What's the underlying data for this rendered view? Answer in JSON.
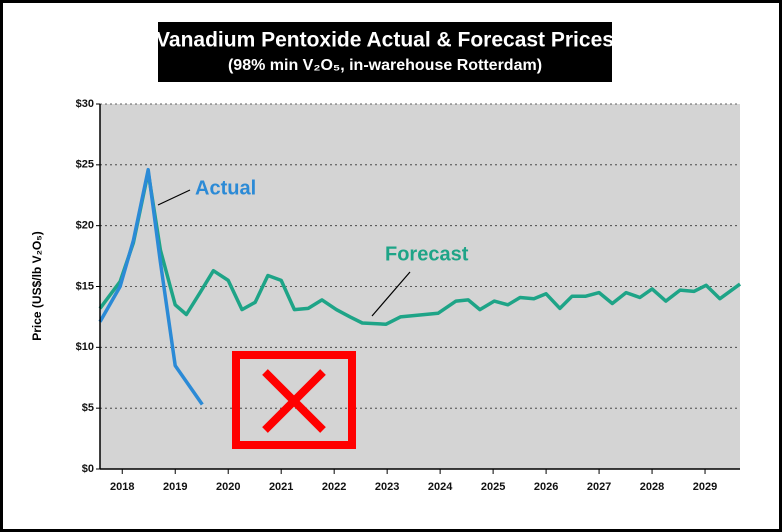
{
  "chart_data": {
    "type": "line",
    "title": "Vanadium Pentoxide Actual & Forecast Prices",
    "subtitle": "(98% min V₂O₅, in-warehouse Rotterdam)",
    "y_label": "Price (US$/lb V₂O₅)",
    "xlim": [
      2017.58,
      2029.66
    ],
    "xticks": [
      2018,
      2019,
      2020,
      2021,
      2022,
      2023,
      2024,
      2025,
      2026,
      2027,
      2028,
      2029
    ],
    "ylim": [
      0,
      30
    ],
    "yticks": [
      {
        "value": 0,
        "label": "$0"
      },
      {
        "value": 5,
        "label": "$5"
      },
      {
        "value": 10,
        "label": "$10"
      },
      {
        "value": 15,
        "label": "$15"
      },
      {
        "value": 20,
        "label": "$20"
      },
      {
        "value": 25,
        "label": "$25"
      },
      {
        "value": 30,
        "label": "$30"
      }
    ],
    "grid": true,
    "series": [
      {
        "name": "Actual",
        "color": "#2b8ad6",
        "x": [
          2017.58,
          2017.96,
          2018.21,
          2018.49,
          2018.72,
          2019.0,
          2019.51
        ],
        "values": [
          12.1,
          15.0,
          18.8,
          24.6,
          17.0,
          8.5,
          5.3
        ]
      },
      {
        "name": "Forecast",
        "color": "#1ea487",
        "x": [
          2017.58,
          2017.96,
          2018.21,
          2018.49,
          2018.72,
          2019.0,
          2019.21,
          2019.47,
          2019.72,
          2020.0,
          2020.26,
          2020.51,
          2020.75,
          2021.0,
          2021.25,
          2021.51,
          2021.77,
          2022.04,
          2022.3,
          2022.53,
          2022.98,
          2023.25,
          2023.96,
          2024.3,
          2024.53,
          2024.75,
          2025.02,
          2025.28,
          2025.51,
          2025.77,
          2026.0,
          2026.26,
          2026.49,
          2026.75,
          2027.0,
          2027.25,
          2027.51,
          2027.77,
          2028.0,
          2028.26,
          2028.53,
          2028.79,
          2029.02,
          2029.28,
          2029.66
        ],
        "values": [
          13.2,
          15.4,
          18.6,
          24.4,
          18.0,
          13.5,
          12.7,
          14.5,
          16.3,
          15.5,
          13.1,
          13.7,
          15.9,
          15.5,
          13.1,
          13.2,
          13.9,
          13.1,
          12.5,
          12.0,
          11.9,
          12.5,
          12.8,
          13.8,
          13.9,
          13.1,
          13.8,
          13.5,
          14.1,
          14.0,
          14.4,
          13.2,
          14.2,
          14.2,
          14.5,
          13.6,
          14.5,
          14.1,
          14.8,
          13.8,
          14.7,
          14.6,
          15.1,
          14.0,
          15.2
        ]
      }
    ]
  }
}
